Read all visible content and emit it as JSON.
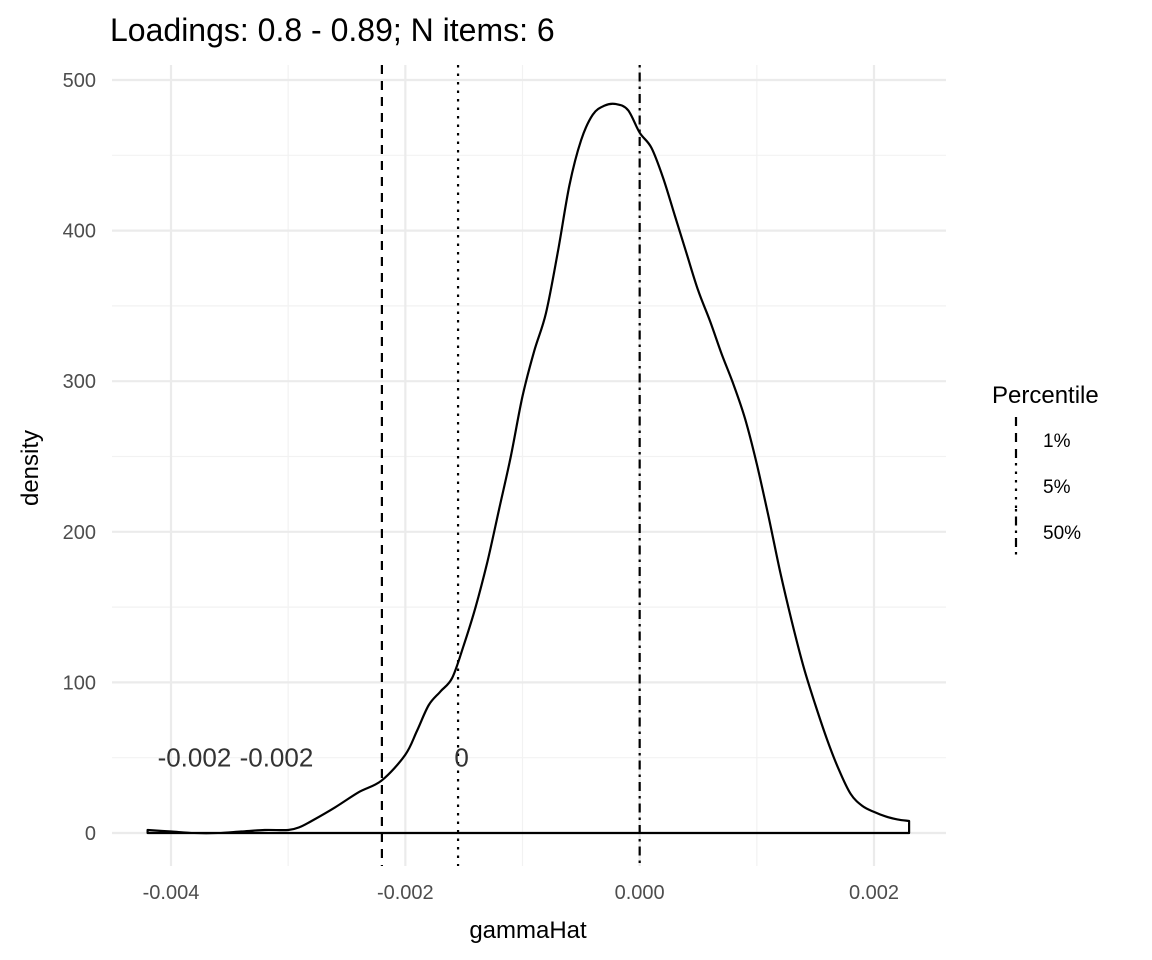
{
  "chart_data": {
    "type": "area",
    "title": "Loadings: 0.8 - 0.89; N items: 6",
    "xlabel": "gammaHat",
    "ylabel": "density",
    "xlim": [
      -0.0042,
      0.0023
    ],
    "ylim": [
      0,
      500
    ],
    "x_ticks": [
      -0.004,
      -0.002,
      0.0,
      0.002
    ],
    "x_tick_labels": [
      "-0.004",
      "-0.002",
      "0.000",
      "0.002"
    ],
    "y_ticks": [
      0,
      100,
      200,
      300,
      400,
      500
    ],
    "y_tick_labels": [
      "0",
      "100",
      "200",
      "300",
      "400",
      "500"
    ],
    "grid": true,
    "legend": {
      "title": "Percentile",
      "placement": "right",
      "entries": [
        {
          "label": "1%",
          "linetype": "dashed"
        },
        {
          "label": "5%",
          "linetype": "dotted"
        },
        {
          "label": "50%",
          "linetype": "dotdash"
        }
      ]
    },
    "series": [
      {
        "x": [
          -0.0042,
          -0.004,
          -0.0038,
          -0.0036,
          -0.0034,
          -0.0032,
          -0.003,
          -0.0029,
          -0.0028,
          -0.0026,
          -0.0024,
          -0.0022,
          -0.002,
          -0.0019,
          -0.0018,
          -0.0017,
          -0.0016,
          -0.0015,
          -0.0014,
          -0.0013,
          -0.0012,
          -0.0011,
          -0.001,
          -0.0009,
          -0.0008,
          -0.0007,
          -0.0006,
          -0.0005,
          -0.0004,
          -0.0003,
          -0.0002,
          -0.0001,
          0.0,
          0.0001,
          0.0002,
          0.0003,
          0.0004,
          0.0005,
          0.0006,
          0.0007,
          0.0008,
          0.0009,
          0.001,
          0.0011,
          0.0012,
          0.0013,
          0.0014,
          0.0015,
          0.0016,
          0.0017,
          0.0018,
          0.0019,
          0.002,
          0.0021,
          0.0022,
          0.0023
        ],
        "y": [
          2,
          1,
          0,
          0,
          1,
          2,
          2,
          4,
          8,
          17,
          27,
          35,
          52,
          68,
          85,
          94,
          103,
          125,
          150,
          180,
          215,
          250,
          290,
          320,
          345,
          385,
          430,
          460,
          477,
          483,
          484,
          480,
          465,
          455,
          435,
          410,
          385,
          360,
          340,
          318,
          298,
          275,
          245,
          210,
          173,
          140,
          110,
          85,
          62,
          42,
          26,
          18,
          14,
          11,
          9,
          8
        ]
      }
    ],
    "vlines": [
      {
        "x": -0.0022,
        "linetype": "dashed",
        "label": "1%"
      },
      {
        "x": -0.00155,
        "linetype": "dotted",
        "label": "5%"
      },
      {
        "x": 0.0,
        "linetype": "dotdash",
        "label": "50%"
      }
    ],
    "annotations": [
      {
        "text": "-0.002",
        "x": -0.0038,
        "y": 50
      },
      {
        "text": "-0.002",
        "x": -0.0031,
        "y": 50
      },
      {
        "text": "0",
        "x": -0.00152,
        "y": 50
      }
    ]
  }
}
